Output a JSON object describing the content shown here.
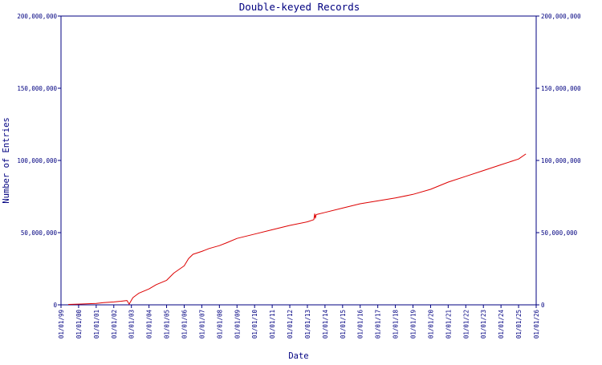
{
  "chart_data": {
    "type": "line",
    "title": "Double-keyed Records",
    "xlabel": "Date",
    "ylabel": "Number of Entries",
    "ylim": [
      0,
      200000000
    ],
    "y_ticks": [
      {
        "value": 0,
        "label": "0"
      },
      {
        "value": 50000000,
        "label": "50,000,000"
      },
      {
        "value": 100000000,
        "label": "100,000,000"
      },
      {
        "value": 150000000,
        "label": "150,000,000"
      },
      {
        "value": 200000000,
        "label": "200,000,000"
      }
    ],
    "x_range": [
      "1999-01-01",
      "2026-01-01"
    ],
    "x_tick_labels": [
      "01/01/99",
      "01/01/00",
      "01/01/01",
      "01/01/02",
      "01/01/03",
      "01/01/04",
      "01/01/05",
      "01/01/06",
      "01/01/07",
      "01/01/08",
      "01/01/09",
      "01/01/10",
      "01/01/11",
      "01/01/12",
      "01/01/13",
      "01/01/14",
      "01/01/15",
      "01/01/16",
      "01/01/17",
      "01/01/18",
      "01/01/19",
      "01/01/20",
      "01/01/21",
      "01/01/22",
      "01/01/23",
      "01/01/24",
      "01/01/25",
      "01/01/26"
    ],
    "secondary_y_axis": true,
    "grid": false,
    "line_color": "#dd0000",
    "axis_color": "#000080",
    "series": [
      {
        "x": [
          "1999-06-01",
          "2000-01-01",
          "2001-01-01",
          "2001-06-01",
          "2002-01-01",
          "2002-06-01",
          "2002-10-01",
          "2002-11-15",
          "2003-02-01",
          "2003-06-01",
          "2004-01-01",
          "2004-06-01",
          "2005-01-01",
          "2005-06-01",
          "2006-01-01",
          "2006-04-01",
          "2006-07-01",
          "2007-01-01",
          "2007-06-01",
          "2008-01-01",
          "2008-06-01",
          "2009-01-01",
          "2010-01-01",
          "2011-01-01",
          "2012-01-01",
          "2013-01-01",
          "2013-05-15",
          "2013-06-01",
          "2013-06-15",
          "2013-07-01",
          "2014-01-01",
          "2015-01-01",
          "2016-01-01",
          "2017-01-01",
          "2018-01-01",
          "2019-01-01",
          "2020-01-01",
          "2021-01-01",
          "2022-01-01",
          "2023-01-01",
          "2024-01-01",
          "2025-01-01",
          "2025-06-01"
        ],
        "values": [
          300000,
          500000,
          1000000,
          1500000,
          2000000,
          2500000,
          3000000,
          500000,
          5000000,
          8000000,
          11000000,
          14000000,
          17000000,
          22000000,
          27000000,
          32000000,
          35000000,
          37000000,
          39000000,
          41000000,
          43000000,
          46000000,
          49000000,
          52000000,
          55000000,
          57500000,
          59000000,
          63000000,
          60000000,
          62500000,
          64000000,
          67000000,
          70000000,
          72000000,
          74000000,
          76500000,
          80000000,
          85000000,
          89000000,
          93000000,
          97000000,
          101000000,
          104500000
        ]
      }
    ]
  }
}
